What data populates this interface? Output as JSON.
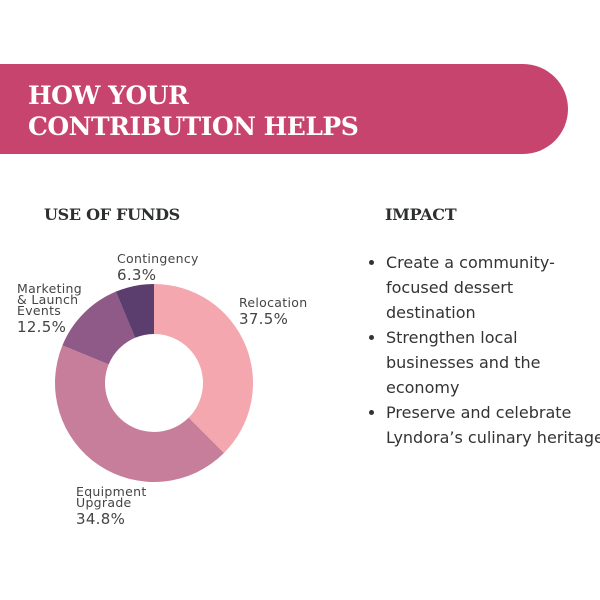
{
  "banner": {
    "title_line1": "HOW YOUR",
    "title_line2": "CONTRIBUTION HELPS",
    "color": "#c7446f"
  },
  "funds": {
    "heading": "USE OF FUNDS"
  },
  "impact": {
    "heading": "IMPACT",
    "items": [
      "Create a community-focused dessert destination",
      "Strengthen local businesses and the economy",
      "Preserve and celebrate Lyndora’s culinary heritage"
    ]
  },
  "chart_data": {
    "type": "pie",
    "donut": true,
    "categories": [
      "Relocation",
      "Equipment Upgrade",
      "Marketing & Launch Events",
      "Contingency"
    ],
    "labels_display": [
      [
        "Relocation"
      ],
      [
        "Equipment",
        "Upgrade"
      ],
      [
        "Marketing",
        "& Launch",
        "Events"
      ],
      [
        "Contingency"
      ]
    ],
    "values": [
      37.5,
      34.8,
      12.5,
      6.3
    ],
    "value_labels": [
      "37.5%",
      "34.8%",
      "12.5%",
      "6.3%"
    ],
    "colors": [
      "#f4a7ae",
      "#c67e9b",
      "#8f5a87",
      "#5b3d6e"
    ]
  }
}
